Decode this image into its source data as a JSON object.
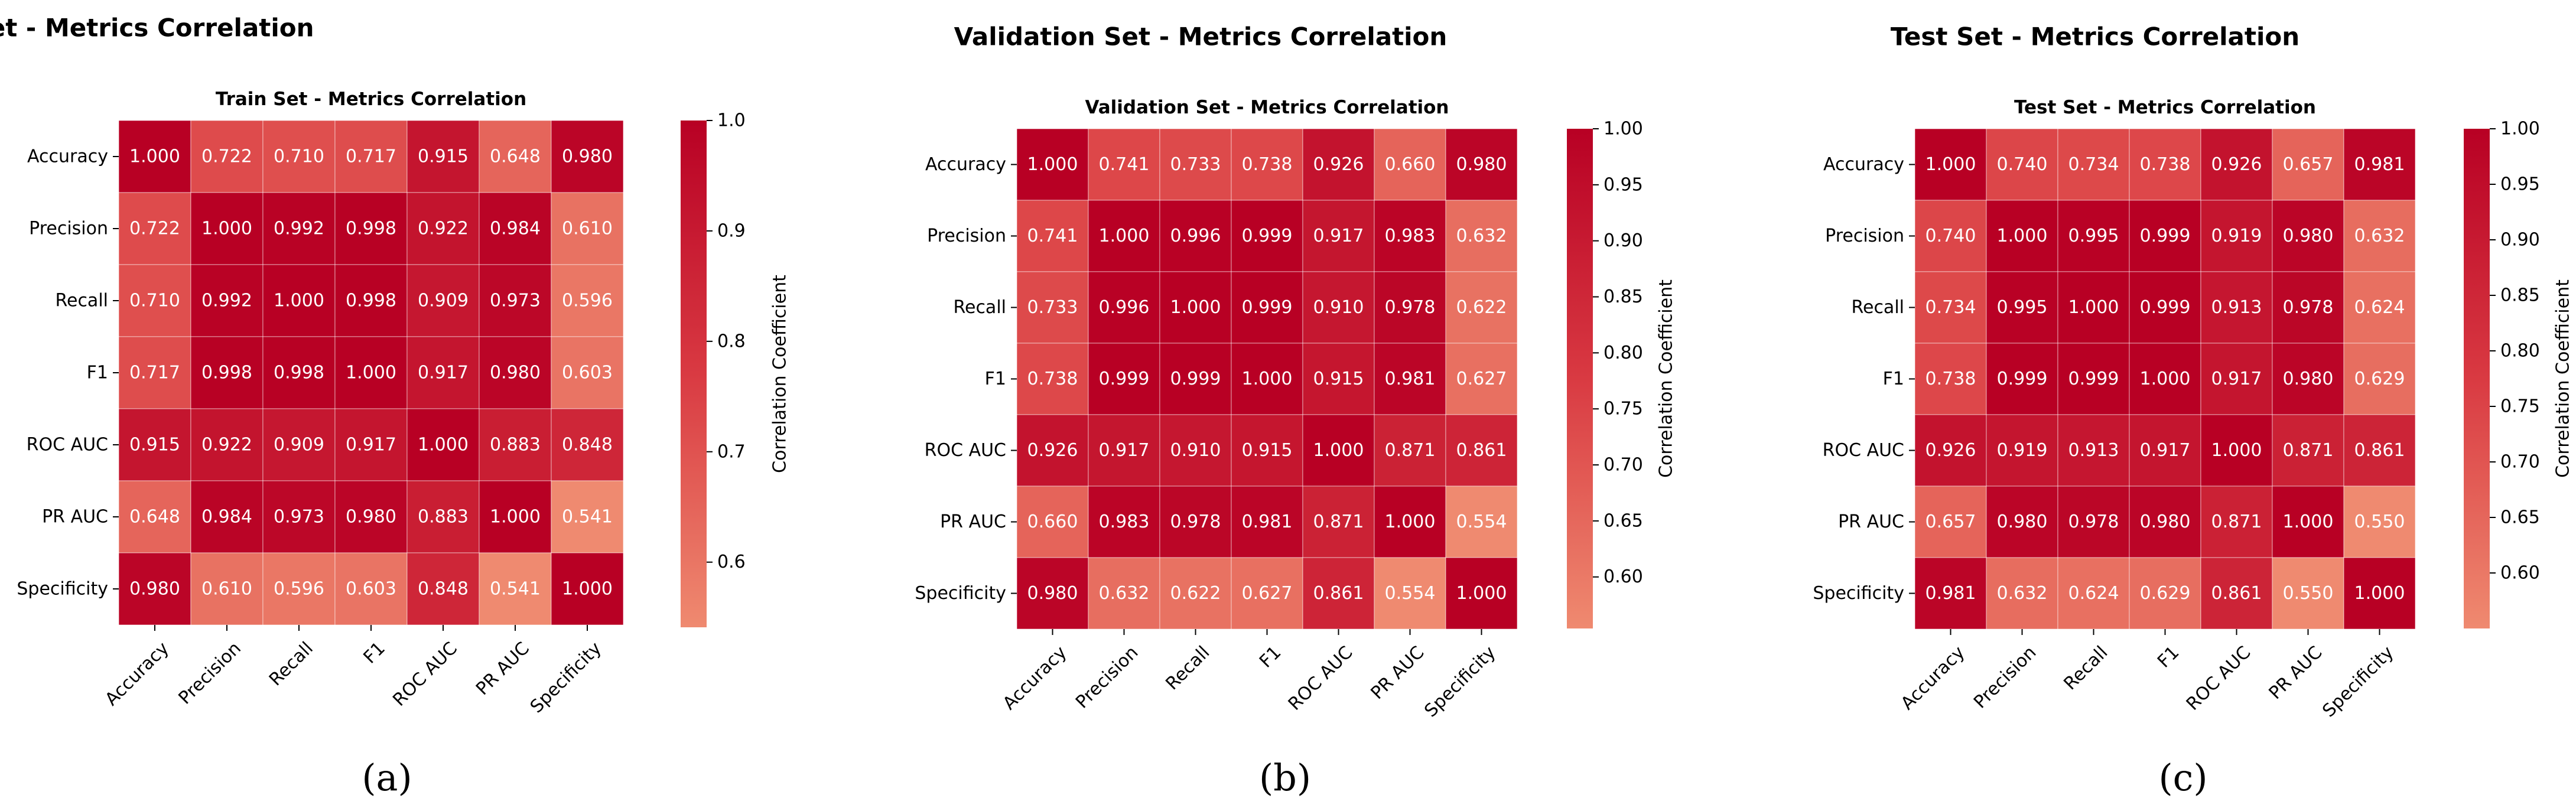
{
  "figure": {
    "panel_labels": [
      "(a)",
      "(b)",
      "(c)"
    ],
    "colors": {
      "low": "#ef8a70",
      "mid": "#d93a42",
      "high": "#b80024",
      "cell_text": "#ffffff",
      "grid": "#ffffff"
    }
  },
  "chart_data": [
    {
      "type": "heatmap",
      "suptitle": "Train Set - Metrics Correlation",
      "title": "Train Set - Metrics Correlation",
      "row_labels": [
        "Accuracy",
        "Precision",
        "Recall",
        "F1",
        "ROC AUC",
        "PR AUC",
        "Specificity"
      ],
      "col_labels": [
        "Accuracy",
        "Precision",
        "Recall",
        "F1",
        "ROC AUC",
        "PR AUC",
        "Specificity"
      ],
      "values": [
        [
          1.0,
          0.722,
          0.71,
          0.717,
          0.915,
          0.648,
          0.98
        ],
        [
          0.722,
          1.0,
          0.992,
          0.998,
          0.922,
          0.984,
          0.61
        ],
        [
          0.71,
          0.992,
          1.0,
          0.998,
          0.909,
          0.973,
          0.596
        ],
        [
          0.717,
          0.998,
          0.998,
          1.0,
          0.917,
          0.98,
          0.603
        ],
        [
          0.915,
          0.922,
          0.909,
          0.917,
          1.0,
          0.883,
          0.848
        ],
        [
          0.648,
          0.984,
          0.973,
          0.98,
          0.883,
          1.0,
          0.541
        ],
        [
          0.98,
          0.61,
          0.596,
          0.603,
          0.848,
          0.541,
          1.0
        ]
      ],
      "cell_labels": [
        [
          "1.000",
          "0.722",
          "0.710",
          "0.717",
          "0.915",
          "0.648",
          "0.980"
        ],
        [
          "0.722",
          "1.000",
          "0.992",
          "0.998",
          "0.922",
          "0.984",
          "0.610"
        ],
        [
          "0.710",
          "0.992",
          "1.000",
          "0.998",
          "0.909",
          "0.973",
          "0.596"
        ],
        [
          "0.717",
          "0.998",
          "0.998",
          "1.000",
          "0.917",
          "0.980",
          "0.603"
        ],
        [
          "0.915",
          "0.922",
          "0.909",
          "0.917",
          "1.000",
          "0.883",
          "0.848"
        ],
        [
          "0.648",
          "0.984",
          "0.973",
          "0.980",
          "0.883",
          "1.000",
          "0.541"
        ],
        [
          "0.980",
          "0.610",
          "0.596",
          "0.603",
          "0.848",
          "0.541",
          "1.000"
        ]
      ],
      "colorbar": {
        "label": "Correlation Coefficient",
        "range": [
          0.541,
          1.0
        ],
        "ticks": [
          0.6,
          0.7,
          0.8,
          0.9,
          1.0
        ],
        "tick_labels": [
          "0.6",
          "0.7",
          "0.8",
          "0.9",
          "1.0"
        ]
      }
    },
    {
      "type": "heatmap",
      "suptitle": "Validation Set - Metrics Correlation",
      "title": "Validation Set - Metrics Correlation",
      "row_labels": [
        "Accuracy",
        "Precision",
        "Recall",
        "F1",
        "ROC AUC",
        "PR AUC",
        "Specificity"
      ],
      "col_labels": [
        "Accuracy",
        "Precision",
        "Recall",
        "F1",
        "ROC AUC",
        "PR AUC",
        "Specificity"
      ],
      "values": [
        [
          1.0,
          0.741,
          0.733,
          0.738,
          0.926,
          0.66,
          0.98
        ],
        [
          0.741,
          1.0,
          0.996,
          0.999,
          0.917,
          0.983,
          0.632
        ],
        [
          0.733,
          0.996,
          1.0,
          0.999,
          0.91,
          0.978,
          0.622
        ],
        [
          0.738,
          0.999,
          0.999,
          1.0,
          0.915,
          0.981,
          0.627
        ],
        [
          0.926,
          0.917,
          0.91,
          0.915,
          1.0,
          0.871,
          0.861
        ],
        [
          0.66,
          0.983,
          0.978,
          0.981,
          0.871,
          1.0,
          0.554
        ],
        [
          0.98,
          0.632,
          0.622,
          0.627,
          0.861,
          0.554,
          1.0
        ]
      ],
      "cell_labels": [
        [
          "1.000",
          "0.741",
          "0.733",
          "0.738",
          "0.926",
          "0.660",
          "0.980"
        ],
        [
          "0.741",
          "1.000",
          "0.996",
          "0.999",
          "0.917",
          "0.983",
          "0.632"
        ],
        [
          "0.733",
          "0.996",
          "1.000",
          "0.999",
          "0.910",
          "0.978",
          "0.622"
        ],
        [
          "0.738",
          "0.999",
          "0.999",
          "1.000",
          "0.915",
          "0.981",
          "0.627"
        ],
        [
          "0.926",
          "0.917",
          "0.910",
          "0.915",
          "1.000",
          "0.871",
          "0.861"
        ],
        [
          "0.660",
          "0.983",
          "0.978",
          "0.981",
          "0.871",
          "1.000",
          "0.554"
        ],
        [
          "0.980",
          "0.632",
          "0.622",
          "0.627",
          "0.861",
          "0.554",
          "1.000"
        ]
      ],
      "colorbar": {
        "label": "Correlation Coefficient",
        "range": [
          0.554,
          1.0
        ],
        "ticks": [
          0.6,
          0.65,
          0.7,
          0.75,
          0.8,
          0.85,
          0.9,
          0.95,
          1.0
        ],
        "tick_labels": [
          "0.60",
          "0.65",
          "0.70",
          "0.75",
          "0.80",
          "0.85",
          "0.90",
          "0.95",
          "1.00"
        ]
      }
    },
    {
      "type": "heatmap",
      "suptitle": "Test Set - Metrics Correlation",
      "title": "Test Set - Metrics Correlation",
      "row_labels": [
        "Accuracy",
        "Precision",
        "Recall",
        "F1",
        "ROC AUC",
        "PR AUC",
        "Specificity"
      ],
      "col_labels": [
        "Accuracy",
        "Precision",
        "Recall",
        "F1",
        "ROC AUC",
        "PR AUC",
        "Specificity"
      ],
      "values": [
        [
          1.0,
          0.74,
          0.734,
          0.738,
          0.926,
          0.657,
          0.981
        ],
        [
          0.74,
          1.0,
          0.995,
          0.999,
          0.919,
          0.98,
          0.632
        ],
        [
          0.734,
          0.995,
          1.0,
          0.999,
          0.913,
          0.978,
          0.624
        ],
        [
          0.738,
          0.999,
          0.999,
          1.0,
          0.917,
          0.98,
          0.629
        ],
        [
          0.926,
          0.919,
          0.913,
          0.917,
          1.0,
          0.871,
          0.861
        ],
        [
          0.657,
          0.98,
          0.978,
          0.98,
          0.871,
          1.0,
          0.55
        ],
        [
          0.981,
          0.632,
          0.624,
          0.629,
          0.861,
          0.55,
          1.0
        ]
      ],
      "cell_labels": [
        [
          "1.000",
          "0.740",
          "0.734",
          "0.738",
          "0.926",
          "0.657",
          "0.981"
        ],
        [
          "0.740",
          "1.000",
          "0.995",
          "0.999",
          "0.919",
          "0.980",
          "0.632"
        ],
        [
          "0.734",
          "0.995",
          "1.000",
          "0.999",
          "0.913",
          "0.978",
          "0.624"
        ],
        [
          "0.738",
          "0.999",
          "0.999",
          "1.000",
          "0.917",
          "0.980",
          "0.629"
        ],
        [
          "0.926",
          "0.919",
          "0.913",
          "0.917",
          "1.000",
          "0.871",
          "0.861"
        ],
        [
          "0.657",
          "0.980",
          "0.978",
          "0.980",
          "0.871",
          "1.000",
          "0.550"
        ],
        [
          "0.981",
          "0.632",
          "0.624",
          "0.629",
          "0.861",
          "0.550",
          "1.000"
        ]
      ],
      "colorbar": {
        "label": "Correlation Coefficient",
        "range": [
          0.55,
          1.0
        ],
        "ticks": [
          0.6,
          0.65,
          0.7,
          0.75,
          0.8,
          0.85,
          0.9,
          0.95,
          1.0
        ],
        "tick_labels": [
          "0.60",
          "0.65",
          "0.70",
          "0.75",
          "0.80",
          "0.85",
          "0.90",
          "0.95",
          "1.00"
        ]
      }
    }
  ]
}
